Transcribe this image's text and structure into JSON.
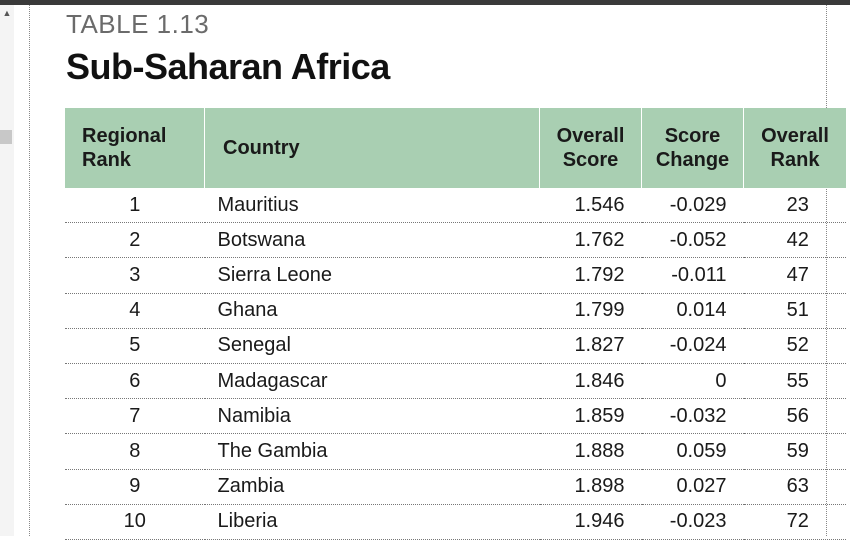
{
  "table_label": "TABLE 1.13",
  "table_title": "Sub-Saharan Africa",
  "colors": {
    "header_bg": "#a9cfb2",
    "negative_change": "#5a8f66",
    "positive_change": "#b23a34"
  },
  "headers": {
    "regional_rank_line1": "Regional",
    "regional_rank_line2": "Rank",
    "country": "Country",
    "overall_score_line1": "Overall",
    "overall_score_line2": "Score",
    "score_change_line1": "Score",
    "score_change_line2": "Change",
    "overall_rank_line1": "Overall",
    "overall_rank_line2": "Rank"
  },
  "rows": [
    {
      "rank": "1",
      "country": "Mauritius",
      "score": "1.546",
      "change": "-0.029",
      "overall_rank": "23",
      "trend": "neg"
    },
    {
      "rank": "2",
      "country": "Botswana",
      "score": "1.762",
      "change": "-0.052",
      "overall_rank": "42",
      "trend": "neg"
    },
    {
      "rank": "3",
      "country": "Sierra Leone",
      "score": "1.792",
      "change": "-0.011",
      "overall_rank": "47",
      "trend": "neg"
    },
    {
      "rank": "4",
      "country": "Ghana",
      "score": "1.799",
      "change": "0.014",
      "overall_rank": "51",
      "trend": "pos"
    },
    {
      "rank": "5",
      "country": "Senegal",
      "score": "1.827",
      "change": "-0.024",
      "overall_rank": "52",
      "trend": "neg"
    },
    {
      "rank": "6",
      "country": "Madagascar",
      "score": "1.846",
      "change": "0",
      "overall_rank": "55",
      "trend": "zero"
    },
    {
      "rank": "7",
      "country": "Namibia",
      "score": "1.859",
      "change": "-0.032",
      "overall_rank": "56",
      "trend": "neg"
    },
    {
      "rank": "8",
      "country": "The Gambia",
      "score": "1.888",
      "change": "0.059",
      "overall_rank": "59",
      "trend": "pos"
    },
    {
      "rank": "9",
      "country": "Zambia",
      "score": "1.898",
      "change": "0.027",
      "overall_rank": "63",
      "trend": "pos"
    },
    {
      "rank": "10",
      "country": "Liberia",
      "score": "1.946",
      "change": "-0.023",
      "overall_rank": "72",
      "trend": "neg"
    }
  ]
}
